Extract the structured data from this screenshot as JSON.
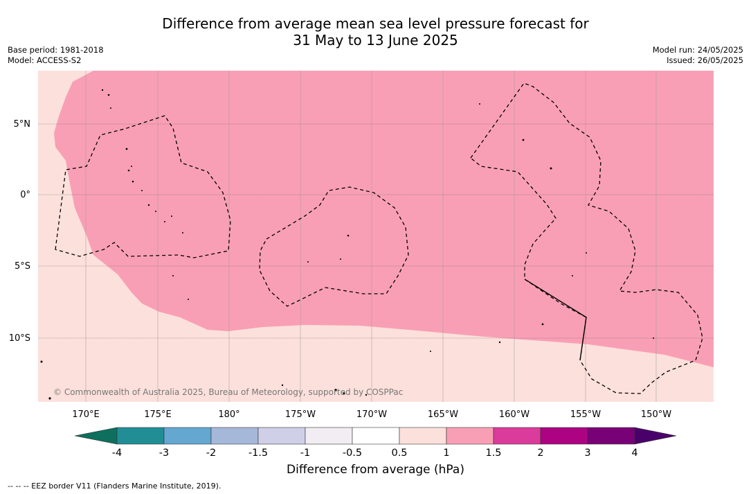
{
  "title_line1": "Difference from average mean sea level pressure forecast for",
  "title_line2": "31 May to 13 June 2025",
  "base_period": "Base period: 1981-2018",
  "model": "Model: ACCESS-S2",
  "model_run": "Model run: 24/05/2025",
  "issued": "Issued: 26/05/2025",
  "copyright": "© Commonwealth of Australia 2025, Bureau of Meteorology, supported by COSPPac",
  "lat_labels": [
    "5°N",
    "0°",
    "5°S",
    "10°S"
  ],
  "lon_labels": [
    "170°E",
    "175°E",
    "180°",
    "175°W",
    "170°W",
    "165°W",
    "160°W",
    "155°W",
    "150°W"
  ],
  "colorbar": {
    "title": "Difference from average (hPa)",
    "ticks": [
      "-4",
      "-3",
      "-2",
      "-1.5",
      "-1",
      "-0.5",
      "0.5",
      "1",
      "1.5",
      "2",
      "3",
      "4"
    ],
    "colors": [
      "#0f6f5f",
      "#218e95",
      "#64a7d1",
      "#a6b8d9",
      "#cfd0e8",
      "#f1edf2",
      "#ffffff",
      "#fce0dc",
      "#f99fb5",
      "#db3b9a",
      "#ad0382",
      "#790177",
      "#4a006a"
    ]
  },
  "colors": {
    "light_pink": "#fce0dc",
    "mid_pink": "#f99fb5",
    "gridline": "#666666"
  },
  "footnote": "--  --  -- EEZ border V11 (Flanders Marine Institute, 2019)."
}
